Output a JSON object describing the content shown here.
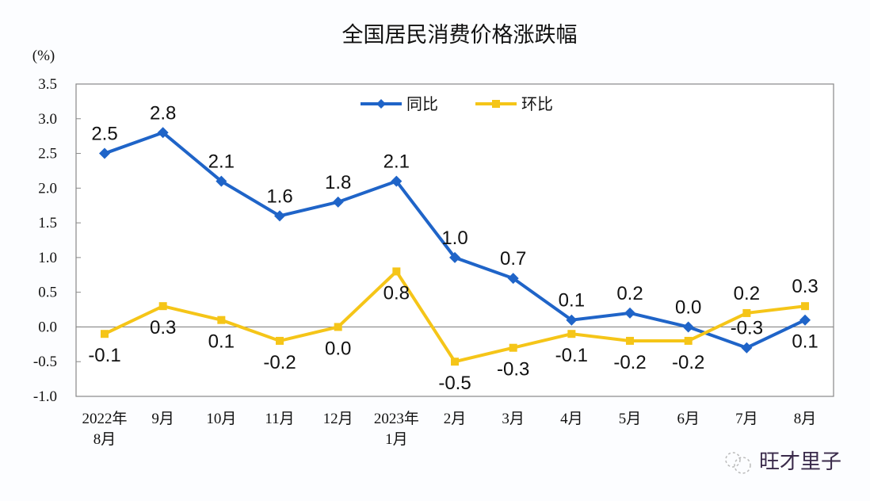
{
  "chart_data": {
    "type": "line",
    "title": "全国居民消费价格涨跌幅",
    "ylabel": "(%)",
    "xlabel": "",
    "ylim": [
      -1.0,
      3.5
    ],
    "yticks": [
      "3.5",
      "3.0",
      "2.5",
      "2.0",
      "1.5",
      "1.0",
      "0.5",
      "0.0",
      "-0.5",
      "-1.0"
    ],
    "categories": [
      [
        "2022年",
        "8月"
      ],
      [
        "9月"
      ],
      [
        "10月"
      ],
      [
        "11月"
      ],
      [
        "12月"
      ],
      [
        "2023年",
        "1月"
      ],
      [
        "2月"
      ],
      [
        "3月"
      ],
      [
        "4月"
      ],
      [
        "5月"
      ],
      [
        "6月"
      ],
      [
        "7月"
      ],
      [
        "8月"
      ]
    ],
    "grid": false,
    "legend": "top-center",
    "series": [
      {
        "name": "同比",
        "color": "#1f64c8",
        "marker": "diamond",
        "values": [
          2.5,
          2.8,
          2.1,
          1.6,
          1.8,
          2.1,
          1.0,
          0.7,
          0.1,
          0.2,
          0.0,
          -0.3,
          0.1
        ],
        "labels": [
          "2.5",
          "2.8",
          "2.1",
          "1.6",
          "1.8",
          "2.1",
          "1.0",
          "0.7",
          "0.1",
          "0.2",
          "0.0",
          "-0.3",
          "0.1"
        ]
      },
      {
        "name": "环比",
        "color": "#f5c518",
        "marker": "square",
        "values": [
          -0.1,
          0.3,
          0.1,
          -0.2,
          0.0,
          0.8,
          -0.5,
          -0.3,
          -0.1,
          -0.2,
          -0.2,
          0.2,
          0.3
        ],
        "labels": [
          "-0.1",
          "0.3",
          "0.1",
          "-0.2",
          "0.0",
          "0.8",
          "-0.5",
          "-0.3",
          "-0.1",
          "-0.2",
          "-0.2",
          "0.2",
          "0.3"
        ]
      }
    ]
  },
  "watermark": "旺才里子"
}
